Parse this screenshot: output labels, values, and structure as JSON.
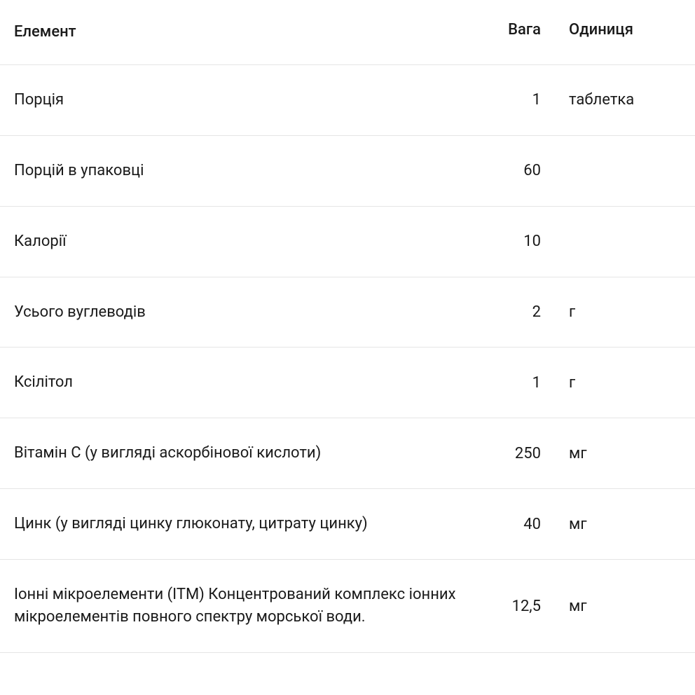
{
  "table": {
    "headers": {
      "element": "Елемент",
      "weight": "Вага",
      "unit": "Одиниця"
    },
    "rows": [
      {
        "element": "Порція",
        "weight": "1",
        "unit": "таблетка"
      },
      {
        "element": "Порцій в упаковці",
        "weight": "60",
        "unit": ""
      },
      {
        "element": "Калорії",
        "weight": "10",
        "unit": ""
      },
      {
        "element": "Усього вуглеводів",
        "weight": "2",
        "unit": "г"
      },
      {
        "element": "Ксілітол",
        "weight": "1",
        "unit": "г"
      },
      {
        "element": "Вітамін С (у вигляді аскорбінової кислоти)",
        "weight": "250",
        "unit": "мг"
      },
      {
        "element": "Цинк (у вигляді цинку глюконату, цитрату цинку)",
        "weight": "40",
        "unit": "мг"
      },
      {
        "element": "Іонні мікроелементи (ITM) Концентрований комплекс іонних мікроелементів повного спектру морської води.",
        "weight": "12,5",
        "unit": "мг"
      }
    ],
    "styling": {
      "background_color": "#ffffff",
      "text_color": "#1a1a1a",
      "border_color": "#e5e5e5",
      "font_size": 22,
      "header_font_weight": 500,
      "row_font_weight": 400,
      "row_padding_v": 34,
      "row_padding_h": 20,
      "col_element_align": "left",
      "col_weight_align": "right",
      "col_unit_align": "left",
      "col_weight_width": 130,
      "col_unit_width": 160
    }
  }
}
